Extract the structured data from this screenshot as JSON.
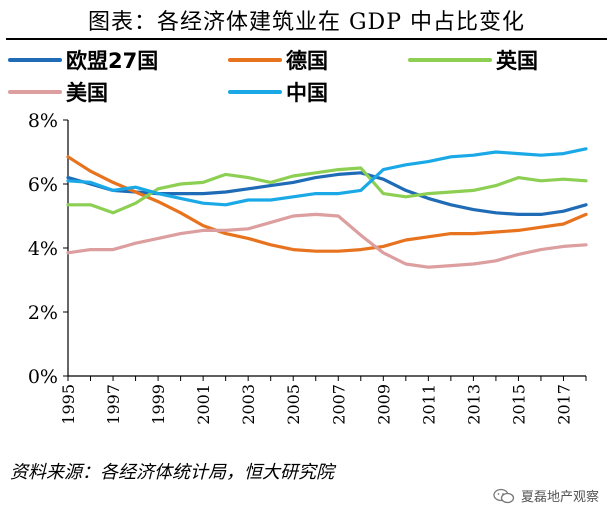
{
  "chart_data": {
    "type": "line",
    "title": "图表：各经济体建筑业在 GDP 中占比变化",
    "xlabel": "",
    "ylabel": "",
    "ylim": [
      0,
      8
    ],
    "yticks": [
      "0%",
      "2%",
      "4%",
      "6%",
      "8%"
    ],
    "x": [
      1995,
      1996,
      1997,
      1998,
      1999,
      2000,
      2001,
      2002,
      2003,
      2004,
      2005,
      2006,
      2007,
      2008,
      2009,
      2010,
      2011,
      2012,
      2013,
      2014,
      2015,
      2016,
      2017,
      2018
    ],
    "xtick_labels": [
      "1995",
      "1997",
      "1999",
      "2001",
      "2003",
      "2005",
      "2007",
      "2009",
      "2011",
      "2013",
      "2015",
      "2017"
    ],
    "legend_position": "top",
    "series": [
      {
        "name": "欧盟27国",
        "color": "#1f6bb5",
        "values": [
          6.2,
          6.0,
          5.8,
          5.75,
          5.7,
          5.7,
          5.7,
          5.75,
          5.85,
          5.95,
          6.05,
          6.2,
          6.3,
          6.35,
          6.15,
          5.8,
          5.55,
          5.35,
          5.2,
          5.1,
          5.05,
          5.05,
          5.15,
          5.35
        ]
      },
      {
        "name": "德国",
        "color": "#e8731e",
        "values": [
          6.85,
          6.4,
          6.05,
          5.75,
          5.45,
          5.1,
          4.7,
          4.45,
          4.3,
          4.1,
          3.95,
          3.9,
          3.9,
          3.95,
          4.05,
          4.25,
          4.35,
          4.45,
          4.45,
          4.5,
          4.55,
          4.65,
          4.75,
          5.05
        ]
      },
      {
        "name": "英国",
        "color": "#8ccf52",
        "values": [
          5.35,
          5.35,
          5.1,
          5.4,
          5.85,
          6.0,
          6.05,
          6.3,
          6.2,
          6.05,
          6.25,
          6.35,
          6.45,
          6.5,
          5.7,
          5.6,
          5.7,
          5.75,
          5.8,
          5.95,
          6.2,
          6.1,
          6.15,
          6.1
        ]
      },
      {
        "name": "美国",
        "color": "#dc9e9e",
        "values": [
          3.85,
          3.95,
          3.95,
          4.15,
          4.3,
          4.45,
          4.55,
          4.55,
          4.6,
          4.8,
          5.0,
          5.05,
          5.0,
          4.4,
          3.85,
          3.5,
          3.4,
          3.45,
          3.5,
          3.6,
          3.8,
          3.95,
          4.05,
          4.1
        ]
      },
      {
        "name": "中国",
        "color": "#1aa9e6",
        "values": [
          6.1,
          6.05,
          5.8,
          5.9,
          5.7,
          5.55,
          5.4,
          5.35,
          5.5,
          5.5,
          5.6,
          5.7,
          5.7,
          5.8,
          6.45,
          6.6,
          6.7,
          6.85,
          6.9,
          7.0,
          6.95,
          6.9,
          6.95,
          7.1
        ]
      }
    ]
  },
  "source_text": "资料来源：各经济体统计局，恒大研究院",
  "watermark": {
    "text": "夏磊地产观察",
    "icon": "wechat-icon"
  }
}
